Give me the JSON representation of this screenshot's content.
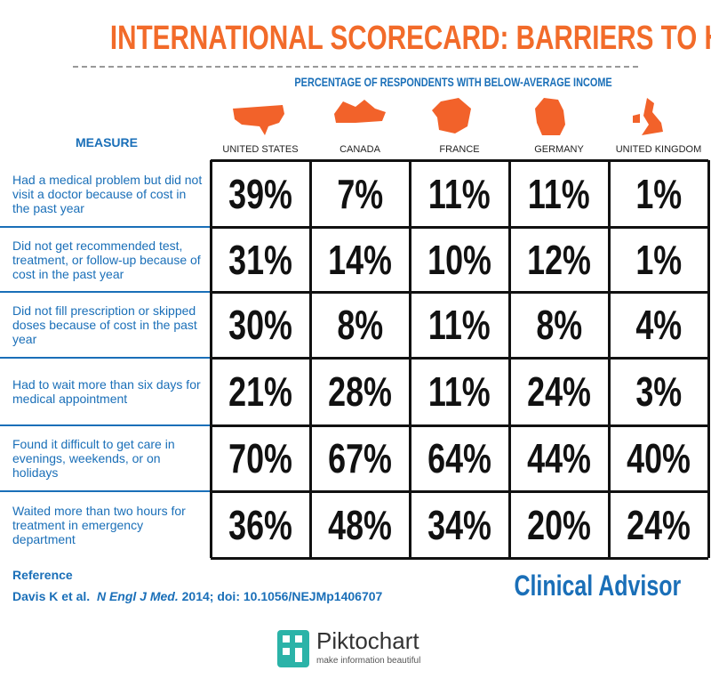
{
  "header": {
    "title": "INTERNATIONAL SCORECARD:  BARRIERS TO HEALTH CARE",
    "subtitle": "PERCENTAGE OF RESPONDENTS WITH BELOW-AVERAGE INCOME"
  },
  "table": {
    "measure_header": "MEASURE",
    "columns": [
      "UNITED STATES",
      "CANADA",
      "FRANCE",
      "GERMANY",
      "UNITED KINGDOM"
    ],
    "rows": [
      {
        "measure": "Had a medical problem but did not visit a doctor because of cost in the past year",
        "values": [
          "39%",
          "7%",
          "11%",
          "11%",
          "1%"
        ]
      },
      {
        "measure": "Did not get recommended test, treatment, or follow-up because of cost in the past year",
        "values": [
          "31%",
          "14%",
          "10%",
          "12%",
          "1%"
        ]
      },
      {
        "measure": "Did not fill prescription or skipped doses because of cost in the past year",
        "values": [
          "30%",
          "8%",
          "11%",
          "8%",
          "4%"
        ]
      },
      {
        "measure": "Had to wait more than six days for medical appointment",
        "values": [
          "21%",
          "28%",
          "11%",
          "24%",
          "3%"
        ]
      },
      {
        "measure": "Found it difficult to get care in evenings, weekends, or on holidays",
        "values": [
          "70%",
          "67%",
          "64%",
          "44%",
          "40%"
        ]
      },
      {
        "measure": "Waited more than two hours for treatment in emergency department",
        "values": [
          "36%",
          "48%",
          "34%",
          "20%",
          "24%"
        ]
      }
    ]
  },
  "footer": {
    "reference_label": "Reference",
    "citation_authors": "Davis K et al.",
    "citation_journal": "N Engl J Med.",
    "citation_rest": "2014; doi: 10.1056/NEJMp1406707",
    "brand": "Clinical Advisor",
    "logo_name": "Piktochart",
    "logo_tagline": "make information beautiful"
  }
}
